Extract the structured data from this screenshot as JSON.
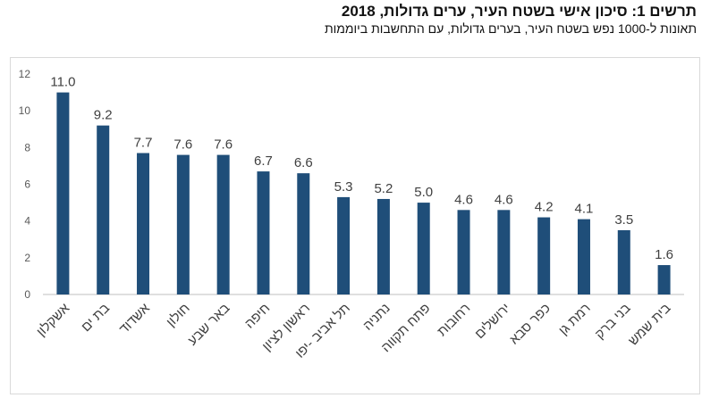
{
  "header": {
    "title": "תרשים 1: סיכון אישי בשטח העיר, ערים גדולות, 2018",
    "subtitle": "תאונות ל-1000 נפש בשטח העיר, בערים גדולות, עם התחשבות ביוממות"
  },
  "colors": {
    "bar": "#1f4e79",
    "axis": "#bfbfbf"
  },
  "chart_data": {
    "type": "bar",
    "title": "תרשים 1: סיכון אישי בשטח העיר, ערים גדולות, 2018",
    "subtitle": "תאונות ל-1000 נפש בשטח העיר, בערים גדולות, עם התחשבות ביוממות",
    "categories": [
      "אשקלון",
      "בת ים",
      "אשדוד",
      "חולון",
      "באר שבע",
      "חיפה",
      "ראשון לציון",
      "תל אביב -יפו",
      "נתניה",
      "פתח תקווה",
      "רחובות",
      "ירושלים",
      "כפר סבא",
      "רמת גן",
      "בני ברק",
      "בית שמש"
    ],
    "values": [
      11.0,
      9.2,
      7.7,
      7.6,
      7.6,
      6.7,
      6.6,
      5.3,
      5.2,
      5.0,
      4.6,
      4.6,
      4.2,
      4.1,
      3.5,
      1.6
    ],
    "value_labels": [
      "11.0",
      "9.2",
      "7.7",
      "7.6",
      "7.6",
      "6.7",
      "6.6",
      "5.3",
      "5.2",
      "5.0",
      "4.6",
      "4.6",
      "4.2",
      "4.1",
      "3.5",
      "1.6"
    ],
    "yticks": [
      "0",
      "2",
      "4",
      "6",
      "8",
      "10",
      "12"
    ],
    "ylim": [
      0,
      12
    ],
    "xlabel": "",
    "ylabel": "",
    "grid": false,
    "legend": "none"
  }
}
